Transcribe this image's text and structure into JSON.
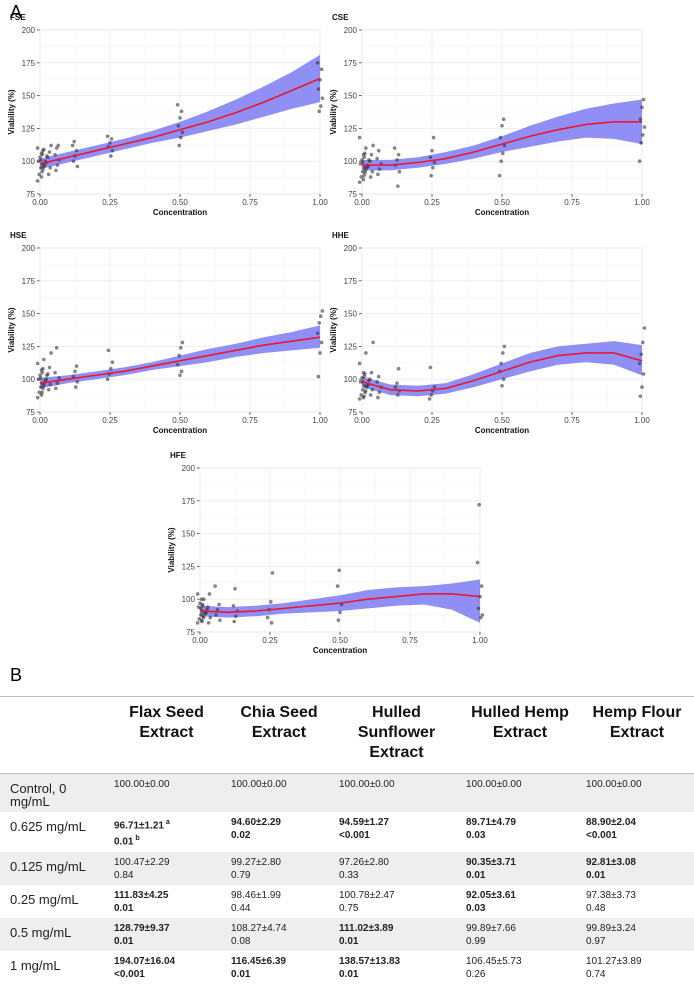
{
  "panels": {
    "A": "A",
    "B": "B"
  },
  "charts": [
    {
      "type": "scatter",
      "title": "FSE",
      "xlabel": "Concentration",
      "ylabel": "Viability (%)",
      "xlim": [
        0,
        1
      ],
      "ylim": [
        75,
        200
      ],
      "x_ticks": [
        "0.00",
        "0.25",
        "0.50",
        "0.75",
        "1.00"
      ],
      "y_ticks": [
        "75",
        "100",
        "125",
        "150",
        "175",
        "200"
      ],
      "fit": {
        "x": [
          0,
          0.1,
          0.2,
          0.3,
          0.4,
          0.5,
          0.6,
          0.7,
          0.8,
          0.9,
          1.0
        ],
        "y": [
          98,
          103,
          108,
          113,
          118,
          124,
          130,
          137,
          145,
          154,
          163
        ],
        "lower": [
          94,
          99,
          104,
          109,
          114,
          118,
          123,
          128,
          134,
          140,
          145
        ],
        "upper": [
          102,
          107,
          112,
          117,
          123,
          130,
          138,
          147,
          157,
          168,
          181
        ]
      },
      "points": {
        "x": [
          0,
          0,
          0,
          0,
          0,
          0,
          0,
          0,
          0.008,
          0.008,
          0.008,
          0.008,
          0.008,
          0.008,
          0.016,
          0.016,
          0.016,
          0.016,
          0.016,
          0.031,
          0.031,
          0.031,
          0.031,
          0.031,
          0.031,
          0.0625,
          0.0625,
          0.0625,
          0.0625,
          0.0625,
          0.0625,
          0.125,
          0.125,
          0.125,
          0.125,
          0.125,
          0.125,
          0.25,
          0.25,
          0.25,
          0.25,
          0.25,
          0.25,
          0.5,
          0.5,
          0.5,
          0.5,
          0.5,
          0.5,
          0.5,
          1,
          1,
          1,
          1,
          1,
          1,
          1
        ],
        "y": [
          85,
          90,
          95,
          98,
          100,
          103,
          106,
          110,
          88,
          94,
          97,
          101,
          105,
          109,
          92,
          96,
          100,
          104,
          108,
          90,
          95,
          99,
          103,
          107,
          112,
          93,
          97,
          101,
          105,
          110,
          112,
          96,
          100,
          104,
          108,
          112,
          115,
          104,
          108,
          111,
          114,
          117,
          119,
          112,
          118,
          122,
          127,
          133,
          138,
          143,
          138,
          142,
          148,
          155,
          162,
          170,
          175
        ]
      }
    },
    {
      "type": "scatter",
      "title": "CSE",
      "xlabel": "Concentration",
      "ylabel": "Viability (%)",
      "xlim": [
        0,
        1
      ],
      "ylim": [
        75,
        200
      ],
      "x_ticks": [
        "0.00",
        "0.25",
        "0.50",
        "0.75",
        "1.00"
      ],
      "y_ticks": [
        "75",
        "100",
        "125",
        "150",
        "175",
        "200"
      ],
      "fit": {
        "x": [
          0,
          0.1,
          0.2,
          0.3,
          0.4,
          0.5,
          0.6,
          0.7,
          0.8,
          0.9,
          1.0
        ],
        "y": [
          97,
          97,
          99,
          102,
          107,
          113,
          119,
          124,
          128,
          130,
          130
        ],
        "lower": [
          93,
          93,
          95,
          98,
          102,
          107,
          111,
          115,
          118,
          117,
          113
        ],
        "upper": [
          101,
          101,
          103,
          107,
          112,
          119,
          127,
          134,
          140,
          144,
          147
        ]
      },
      "points": {
        "x": [
          0,
          0,
          0,
          0,
          0,
          0,
          0,
          0,
          0.008,
          0.008,
          0.008,
          0.008,
          0.008,
          0.008,
          0.016,
          0.016,
          0.016,
          0.016,
          0.016,
          0.031,
          0.031,
          0.031,
          0.031,
          0.031,
          0.031,
          0.0625,
          0.0625,
          0.0625,
          0.0625,
          0.0625,
          0.125,
          0.125,
          0.125,
          0.125,
          0.125,
          0.125,
          0.25,
          0.25,
          0.25,
          0.25,
          0.25,
          0.25,
          0.5,
          0.5,
          0.5,
          0.5,
          0.5,
          0.5,
          0.5,
          1,
          1,
          1,
          1,
          1,
          1,
          1
        ],
        "y": [
          84,
          88,
          92,
          95,
          98,
          101,
          105,
          118,
          86,
          91,
          95,
          99,
          103,
          110,
          89,
          93,
          97,
          101,
          106,
          88,
          92,
          96,
          100,
          105,
          112,
          90,
          94,
          98,
          102,
          108,
          81,
          92,
          97,
          101,
          105,
          110,
          89,
          95,
          99,
          103,
          108,
          118,
          89,
          100,
          106,
          112,
          118,
          127,
          132,
          100,
          114,
          120,
          126,
          132,
          141,
          147
        ]
      }
    },
    {
      "type": "scatter",
      "title": "HSE",
      "xlabel": "Concentration",
      "ylabel": "Viability (%)",
      "xlim": [
        0,
        1
      ],
      "ylim": [
        75,
        200
      ],
      "x_ticks": [
        "0.00",
        "0.25",
        "0.50",
        "0.75",
        "1.00"
      ],
      "y_ticks": [
        "75",
        "100",
        "125",
        "150",
        "175",
        "200"
      ],
      "fit": {
        "x": [
          0,
          0.1,
          0.2,
          0.3,
          0.4,
          0.5,
          0.6,
          0.7,
          0.8,
          0.9,
          1.0
        ],
        "y": [
          97,
          100,
          103,
          106,
          110,
          114,
          118,
          122,
          126,
          129,
          132
        ],
        "lower": [
          93,
          97,
          100,
          103,
          107,
          110,
          113,
          117,
          120,
          122,
          124
        ],
        "upper": [
          101,
          103,
          106,
          109,
          113,
          118,
          123,
          127,
          132,
          136,
          141
        ]
      },
      "points": {
        "x": [
          0,
          0,
          0,
          0,
          0,
          0,
          0,
          0,
          0.008,
          0.008,
          0.008,
          0.008,
          0.008,
          0.008,
          0.016,
          0.016,
          0.016,
          0.016,
          0.016,
          0.031,
          0.031,
          0.031,
          0.031,
          0.031,
          0.031,
          0.0625,
          0.0625,
          0.0625,
          0.0625,
          0.0625,
          0.125,
          0.125,
          0.125,
          0.125,
          0.125,
          0.25,
          0.25,
          0.25,
          0.25,
          0.25,
          0.5,
          0.5,
          0.5,
          0.5,
          0.5,
          0.5,
          1,
          1,
          1,
          1,
          1,
          1,
          1
        ],
        "y": [
          86,
          90,
          94,
          97,
          100,
          103,
          107,
          112,
          88,
          93,
          97,
          101,
          105,
          115,
          90,
          95,
          99,
          103,
          108,
          92,
          96,
          100,
          104,
          109,
          120,
          93,
          97,
          101,
          105,
          124,
          94,
          98,
          102,
          106,
          110,
          100,
          104,
          108,
          113,
          122,
          103,
          106,
          111,
          118,
          124,
          128,
          102,
          120,
          128,
          135,
          143,
          148,
          152
        ]
      }
    },
    {
      "type": "scatter",
      "title": "HHE",
      "xlabel": "Concentration",
      "ylabel": "Viability (%)",
      "xlim": [
        0,
        1
      ],
      "ylim": [
        75,
        200
      ],
      "x_ticks": [
        "0.00",
        "0.25",
        "0.50",
        "0.75",
        "1.00"
      ],
      "y_ticks": [
        "75",
        "100",
        "125",
        "150",
        "175",
        "200"
      ],
      "fit": {
        "x": [
          0,
          0.1,
          0.2,
          0.3,
          0.4,
          0.5,
          0.6,
          0.7,
          0.8,
          0.9,
          1.0
        ],
        "y": [
          98,
          92,
          91,
          93,
          99,
          106,
          113,
          118,
          120,
          120,
          114
        ],
        "lower": [
          94,
          88,
          87,
          89,
          94,
          100,
          106,
          111,
          113,
          111,
          103
        ],
        "upper": [
          102,
          96,
          95,
          97,
          104,
          112,
          120,
          125,
          127,
          129,
          126
        ]
      },
      "points": {
        "x": [
          0,
          0,
          0,
          0,
          0,
          0,
          0,
          0,
          0.008,
          0.008,
          0.008,
          0.008,
          0.008,
          0.008,
          0.016,
          0.016,
          0.016,
          0.016,
          0.016,
          0.031,
          0.031,
          0.031,
          0.031,
          0.031,
          0.031,
          0.0625,
          0.0625,
          0.0625,
          0.0625,
          0.0625,
          0.125,
          0.125,
          0.125,
          0.125,
          0.125,
          0.25,
          0.25,
          0.25,
          0.25,
          0.25,
          0.5,
          0.5,
          0.5,
          0.5,
          0.5,
          0.5,
          1,
          1,
          1,
          1,
          1,
          1,
          1
        ],
        "y": [
          85,
          88,
          92,
          95,
          98,
          101,
          105,
          112,
          86,
          90,
          94,
          98,
          102,
          120,
          87,
          91,
          95,
          99,
          104,
          88,
          92,
          96,
          100,
          105,
          128,
          86,
          90,
          94,
          98,
          102,
          88,
          91,
          94,
          97,
          108,
          85,
          88,
          91,
          94,
          109,
          95,
          100,
          106,
          112,
          120,
          125,
          87,
          94,
          104,
          112,
          119,
          128,
          139
        ]
      }
    },
    {
      "type": "scatter",
      "title": "HFE",
      "xlabel": "Concentration",
      "ylabel": "Viability (%)",
      "xlim": [
        0,
        1
      ],
      "ylim": [
        75,
        200
      ],
      "x_ticks": [
        "0.00",
        "0.25",
        "0.50",
        "0.75",
        "1.00"
      ],
      "y_ticks": [
        "75",
        "100",
        "125",
        "150",
        "175",
        "200"
      ],
      "fit": {
        "x": [
          0,
          0.1,
          0.2,
          0.3,
          0.4,
          0.5,
          0.6,
          0.7,
          0.8,
          0.9,
          1.0
        ],
        "y": [
          91,
          90,
          91,
          93,
          95,
          97,
          100,
          102,
          104,
          104,
          102
        ],
        "lower": [
          87,
          86,
          87,
          89,
          90,
          91,
          93,
          95,
          96,
          92,
          82
        ],
        "upper": [
          95,
          94,
          95,
          97,
          100,
          103,
          107,
          109,
          110,
          112,
          115
        ]
      },
      "points": {
        "x": [
          0,
          0,
          0,
          0,
          0,
          0,
          0,
          0,
          0.008,
          0.008,
          0.008,
          0.008,
          0.008,
          0.008,
          0.016,
          0.016,
          0.016,
          0.016,
          0.016,
          0.031,
          0.031,
          0.031,
          0.031,
          0.031,
          0.0625,
          0.0625,
          0.0625,
          0.0625,
          0.0625,
          0.125,
          0.125,
          0.125,
          0.125,
          0.125,
          0.25,
          0.25,
          0.25,
          0.25,
          0.25,
          0.5,
          0.5,
          0.5,
          0.5,
          0.5,
          1,
          1,
          1,
          1,
          1,
          1,
          1
        ],
        "y": [
          82,
          85,
          88,
          91,
          94,
          97,
          100,
          104,
          84,
          87,
          90,
          93,
          96,
          100,
          83,
          86,
          89,
          92,
          95,
          82,
          86,
          90,
          94,
          104,
          84,
          88,
          92,
          96,
          110,
          83,
          87,
          91,
          95,
          108,
          82,
          86,
          92,
          98,
          120,
          84,
          90,
          96,
          110,
          122,
          86,
          88,
          93,
          102,
          110,
          128,
          172
        ]
      }
    }
  ],
  "table": {
    "headers": [
      "",
      "Flax Seed Extract",
      "Chia Seed Extract",
      "Hulled Sunflower Extract",
      "Hulled Hemp Extract",
      "Hemp Flour Extract"
    ],
    "rows": [
      {
        "label": "Control, 0 mg/mL",
        "cells": [
          {
            "v": "100.00±0.00",
            "p": ""
          },
          {
            "v": "100.00±0.00",
            "p": ""
          },
          {
            "v": "100.00±0.00",
            "p": ""
          },
          {
            "v": "100.00±0.00",
            "p": ""
          },
          {
            "v": "100.00±0.00",
            "p": ""
          }
        ]
      },
      {
        "label": "0.625 mg/mL",
        "cells": [
          {
            "v": "96.71±1.21",
            "vs": "a",
            "p": "0.01",
            "ps": "b",
            "bold": true
          },
          {
            "v": "94.60±2.29",
            "p": "0.02",
            "bold": true
          },
          {
            "v": "94.59±1.27",
            "p": "<0.001",
            "bold": true
          },
          {
            "v": "89.71±4.79",
            "p": "0.03",
            "bold": true
          },
          {
            "v": "88.90±2.04",
            "p": "<0.001",
            "bold": true
          }
        ]
      },
      {
        "label": "0.125 mg/mL",
        "cells": [
          {
            "v": "100.47±2.29",
            "p": "0.84"
          },
          {
            "v": "99.27±2.80",
            "p": "0.79"
          },
          {
            "v": "97.26±2.80",
            "p": "0.33"
          },
          {
            "v": "90.35±3.71",
            "p": "0.01",
            "bold": true
          },
          {
            "v": "92.81±3.08",
            "p": "0.01",
            "bold": true
          }
        ]
      },
      {
        "label": "0.25 mg/mL",
        "cells": [
          {
            "v": "111.83±4.25",
            "p": "0.01",
            "bold": true
          },
          {
            "v": "98.46±1.99",
            "p": "0.44"
          },
          {
            "v": "100.78±2.47",
            "p": "0.75"
          },
          {
            "v": "92.05±3.61",
            "p": "0.03",
            "bold": true
          },
          {
            "v": "97.38±3.73",
            "p": "0.48"
          }
        ]
      },
      {
        "label": "0.5 mg/mL",
        "cells": [
          {
            "v": "128.79±9.37",
            "p": "0.01",
            "bold": true
          },
          {
            "v": "108.27±4.74",
            "p": "0.08"
          },
          {
            "v": "111.02±3.89",
            "p": "0.01",
            "bold": true
          },
          {
            "v": "99.89±7.66",
            "p": "0.99"
          },
          {
            "v": "99.89±3.24",
            "p": "0.97"
          }
        ]
      },
      {
        "label": "1 mg/mL",
        "cells": [
          {
            "v": "194.07±16.04",
            "p": "<0.001",
            "bold": true
          },
          {
            "v": "116.45±6.39",
            "p": "0.01",
            "bold": true
          },
          {
            "v": "138.57±13.83",
            "p": "0.01",
            "bold": true
          },
          {
            "v": "106.45±5.73",
            "p": "0.26"
          },
          {
            "v": "101.27±3.89",
            "p": "0.74"
          }
        ]
      }
    ]
  },
  "colors": {
    "band": "#7b7bf5",
    "fit": "#e8182f",
    "point": "#333333",
    "grid": "#ebebeb"
  }
}
